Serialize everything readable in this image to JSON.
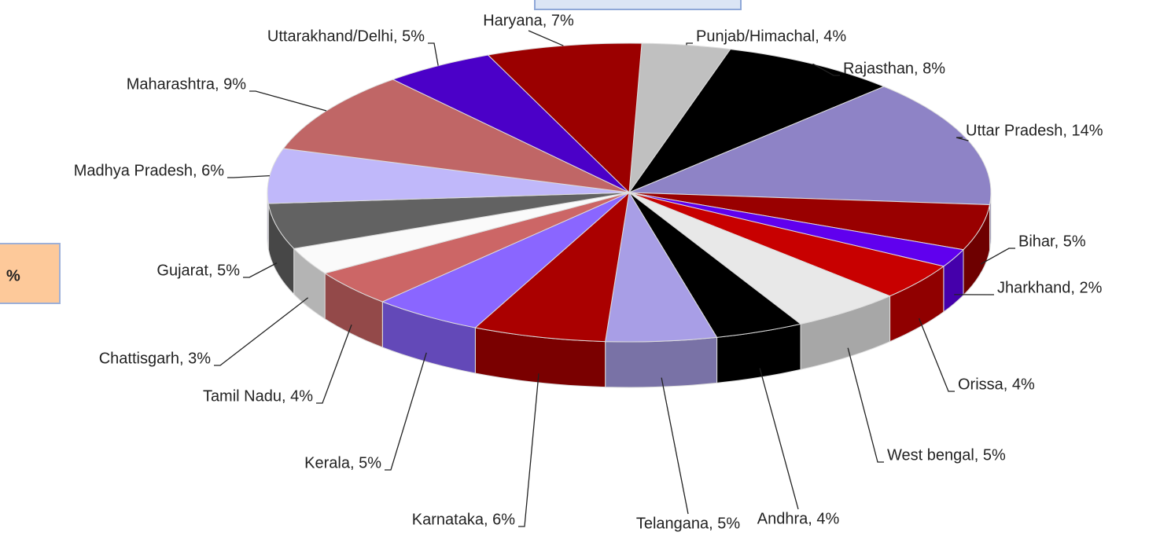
{
  "chart_data": {
    "type": "pie3d",
    "value_labels": [
      "Punjab/Himachal, 4%",
      "Rajasthan, 8%",
      "Uttar Pradesh, 14%",
      "Bihar, 5%",
      "Jharkhand, 2%",
      "Orissa, 4%",
      "West bengal, 5%",
      "Andhra, 4%",
      "Telangana, 5%",
      "Karnataka, 6%",
      "Kerala, 5%",
      "Tamil Nadu, 4%",
      "Chattisgarh, 3%",
      "Gujarat, 5%",
      "Madhya Pradesh, 6%",
      "Maharashtra, 9%",
      "Uttarakhand/Delhi, 5%",
      "Haryana, 7%"
    ],
    "values": [
      4,
      8,
      14,
      5,
      2,
      4,
      5,
      4,
      5,
      6,
      5,
      4,
      3,
      5,
      6,
      9,
      5,
      7
    ],
    "colors": [
      "#c0c0c0",
      "#000000",
      "#8e83c6",
      "#990000",
      "#6000ee",
      "#c80000",
      "#e8e8e8",
      "#000000",
      "#a89ee6",
      "#aa0000",
      "#8a66ff",
      "#cc6666",
      "#fafafa",
      "#626262",
      "#c0b8fa",
      "#c06666",
      "#4b00c8",
      "#9b0000"
    ],
    "annotations": [
      "%"
    ]
  }
}
